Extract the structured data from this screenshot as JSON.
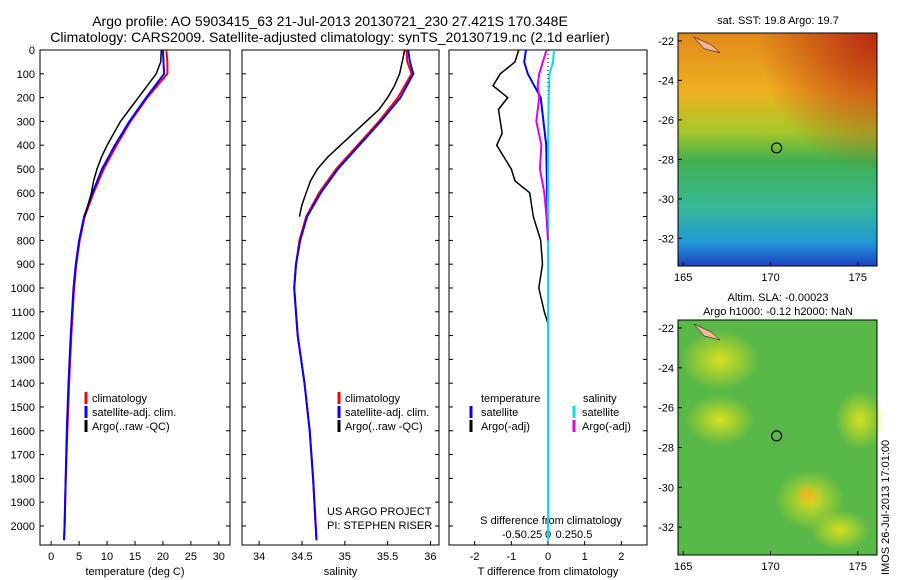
{
  "header": {
    "line1": "Argo profile: AO 5903415_63 21-Jul-2013 20130721_230 27.421S 170.348E",
    "line2": "Climatology: CARS2009. Satellite-adjusted climatology: synTS_20130719.nc (2.1d earlier)"
  },
  "map_top_title": "sat. SST: 19.8 Argo: 19.7",
  "map_bottom_title_1": "Altim. SLA: -0.00023",
  "map_bottom_title_2": "Argo h1000: -0.12 h2000: NaN",
  "credits": {
    "line1": "US ARGO PROJECT",
    "line2": "PI: STEPHEN RISER"
  },
  "stamp": "IMOS 26-Jul-2013 17:01:00",
  "legends": {
    "climatology": "climatology",
    "satellite_adj": "satellite-adj. clim.",
    "argo_raw_qc": "Argo(..raw -QC)",
    "temperature": "temperature",
    "salinity": "salinity",
    "satellite": "satellite",
    "argo_adj": "Argo(-adj)"
  },
  "colors": {
    "climatology": "#ff0000",
    "satellite": "#0000ff",
    "argo": "#000000",
    "sal_satellite": "#00e0e0",
    "sal_argo": "#e000e0",
    "map_marker": "#000000",
    "land": "#f2b49a"
  },
  "chart_data": [
    {
      "type": "line",
      "xlabel": "temperature (deg C)",
      "xlim": [
        -2,
        32
      ],
      "xticks": [
        0,
        5,
        10,
        15,
        20,
        25,
        30
      ],
      "ylim": [
        2080,
        0
      ],
      "yticks": [
        0,
        100,
        200,
        300,
        400,
        500,
        600,
        700,
        800,
        900,
        1000,
        1100,
        1200,
        1300,
        1400,
        1500,
        1600,
        1700,
        1800,
        1900,
        2000
      ],
      "legend": "bottom-left",
      "series": [
        {
          "name": "climatology",
          "color": "#ff0000",
          "depth": [
            0,
            50,
            100,
            200,
            300,
            400,
            500,
            600,
            700,
            800,
            900,
            1000,
            1200,
            1400,
            1600,
            1800,
            2000,
            2060
          ],
          "values": [
            20.6,
            20.8,
            20.8,
            17.2,
            14.2,
            11.7,
            9.4,
            7.6,
            6.0,
            5.1,
            4.5,
            4.1,
            3.6,
            3.2,
            2.9,
            2.6,
            2.4,
            2.3
          ]
        },
        {
          "name": "satellite-adj. clim.",
          "color": "#0000ff",
          "depth": [
            0,
            50,
            100,
            200,
            300,
            400,
            500,
            600,
            700,
            800,
            900,
            1000,
            1200,
            1400,
            1600,
            1800,
            2000,
            2060
          ],
          "values": [
            20.0,
            20.1,
            20.2,
            17.0,
            14.0,
            11.4,
            9.1,
            7.4,
            5.9,
            5.0,
            4.4,
            4.0,
            3.5,
            3.1,
            2.8,
            2.6,
            2.4,
            2.3
          ]
        },
        {
          "name": "Argo(..raw -QC)",
          "color": "#000000",
          "depth": [
            0,
            50,
            100,
            150,
            200,
            250,
            300,
            350,
            400,
            450,
            500,
            550,
            600,
            650,
            700
          ],
          "values": [
            19.7,
            19.6,
            18.8,
            17.2,
            15.6,
            14.0,
            12.4,
            11.2,
            10.0,
            9.0,
            8.2,
            7.6,
            7.2,
            6.6,
            6.0
          ]
        }
      ]
    },
    {
      "type": "line",
      "xlabel": "salinity",
      "xlim": [
        33.8,
        36.1
      ],
      "xticks": [
        34,
        34.5,
        35,
        35.5,
        36
      ],
      "ylim": [
        2080,
        0
      ],
      "legend": "bottom-left",
      "series": [
        {
          "name": "climatology",
          "color": "#ff0000",
          "depth": [
            0,
            50,
            100,
            200,
            300,
            400,
            500,
            600,
            700,
            800,
            900,
            1000,
            1200,
            1400,
            1600,
            1800,
            2000,
            2060
          ],
          "values": [
            35.72,
            35.73,
            35.78,
            35.62,
            35.4,
            35.15,
            34.9,
            34.7,
            34.55,
            34.47,
            34.43,
            34.41,
            34.45,
            34.53,
            34.59,
            34.63,
            34.66,
            34.67
          ]
        },
        {
          "name": "satellite-adj. clim.",
          "color": "#0000ff",
          "depth": [
            0,
            50,
            100,
            200,
            300,
            400,
            500,
            600,
            700,
            800,
            900,
            1000,
            1200,
            1400,
            1600,
            1800,
            2000,
            2060
          ],
          "values": [
            35.74,
            35.76,
            35.8,
            35.65,
            35.42,
            35.17,
            34.92,
            34.72,
            34.56,
            34.48,
            34.43,
            34.41,
            34.45,
            34.53,
            34.59,
            34.63,
            34.66,
            34.67
          ]
        },
        {
          "name": "Argo(..raw -QC)",
          "color": "#000000",
          "depth": [
            0,
            50,
            100,
            150,
            200,
            250,
            300,
            350,
            400,
            450,
            500,
            550,
            600,
            650,
            700
          ],
          "values": [
            35.7,
            35.67,
            35.64,
            35.58,
            35.5,
            35.4,
            35.25,
            35.1,
            34.95,
            34.8,
            34.68,
            34.6,
            34.55,
            34.5,
            34.47
          ]
        }
      ]
    },
    {
      "type": "line",
      "xlabel": "T difference from climatology",
      "xlabel_top": "S difference from climatology",
      "xlim": [
        -2.7,
        2.7
      ],
      "xticks": [
        -2,
        -1,
        0,
        1,
        2
      ],
      "xticks_top": [
        -0.5,
        -0.25,
        0,
        0.25,
        0.5
      ],
      "xtick_labels_top": [
        "-0.5",
        "-0.25",
        "0",
        "0.25",
        "0.5"
      ],
      "ylim": [
        2080,
        0
      ],
      "legend": "bottom-center",
      "series": [
        {
          "name": "temperature satellite",
          "color": "#0000ff",
          "depth": [
            0,
            50,
            100,
            200,
            400,
            800,
            1200,
            1600,
            2000,
            2060
          ],
          "values": [
            -0.6,
            -0.65,
            -0.55,
            -0.2,
            -0.05,
            0.0,
            0.0,
            0.0,
            0.0,
            0.0
          ]
        },
        {
          "name": "temperature Argo(-adj)",
          "color": "#000000",
          "depth": [
            0,
            50,
            100,
            150,
            200,
            250,
            300,
            350,
            400,
            450,
            500,
            550,
            600,
            700,
            800,
            900,
            1000,
            1100,
            1150
          ],
          "values": [
            -0.8,
            -0.9,
            -1.3,
            -1.5,
            -1.1,
            -1.35,
            -1.3,
            -1.25,
            -1.4,
            -1.2,
            -1.0,
            -0.9,
            -0.5,
            -0.4,
            -0.2,
            -0.15,
            -0.25,
            -0.1,
            0.0
          ]
        },
        {
          "name": "salinity satellite",
          "color": "#00e0e0",
          "depth": [
            0,
            50,
            100,
            200,
            400,
            800,
            1200,
            1600,
            2000,
            2060
          ],
          "values": [
            0.08,
            0.07,
            0.02,
            0.01,
            0.0,
            0.0,
            0.0,
            0.0,
            0.0,
            0.0
          ]
        },
        {
          "name": "salinity Argo(-adj)",
          "color": "#e000e0",
          "depth": [
            0,
            100,
            150,
            200,
            300,
            400,
            500,
            600,
            700,
            800
          ],
          "values": [
            -0.02,
            -0.12,
            -0.14,
            -0.12,
            -0.16,
            -0.09,
            -0.11,
            -0.05,
            -0.02,
            0.0
          ]
        }
      ]
    },
    {
      "type": "heatmap",
      "title": "sat. SST: 19.8 Argo: 19.7",
      "xlim": [
        164.7,
        176.1
      ],
      "ylim": [
        -33.4,
        -21.6
      ],
      "xticks": [
        165,
        170,
        175
      ],
      "yticks": [
        -22,
        -24,
        -26,
        -28,
        -30,
        -32
      ],
      "marker": {
        "lon": 170.35,
        "lat": -27.42
      }
    },
    {
      "type": "heatmap",
      "title": "Altim. SLA: -0.00023",
      "xlim": [
        164.7,
        176.1
      ],
      "ylim": [
        -33.4,
        -21.6
      ],
      "xticks": [
        165,
        170,
        175
      ],
      "yticks": [
        -22,
        -24,
        -26,
        -28,
        -30,
        -32
      ],
      "marker": {
        "lon": 170.35,
        "lat": -27.42
      }
    }
  ]
}
